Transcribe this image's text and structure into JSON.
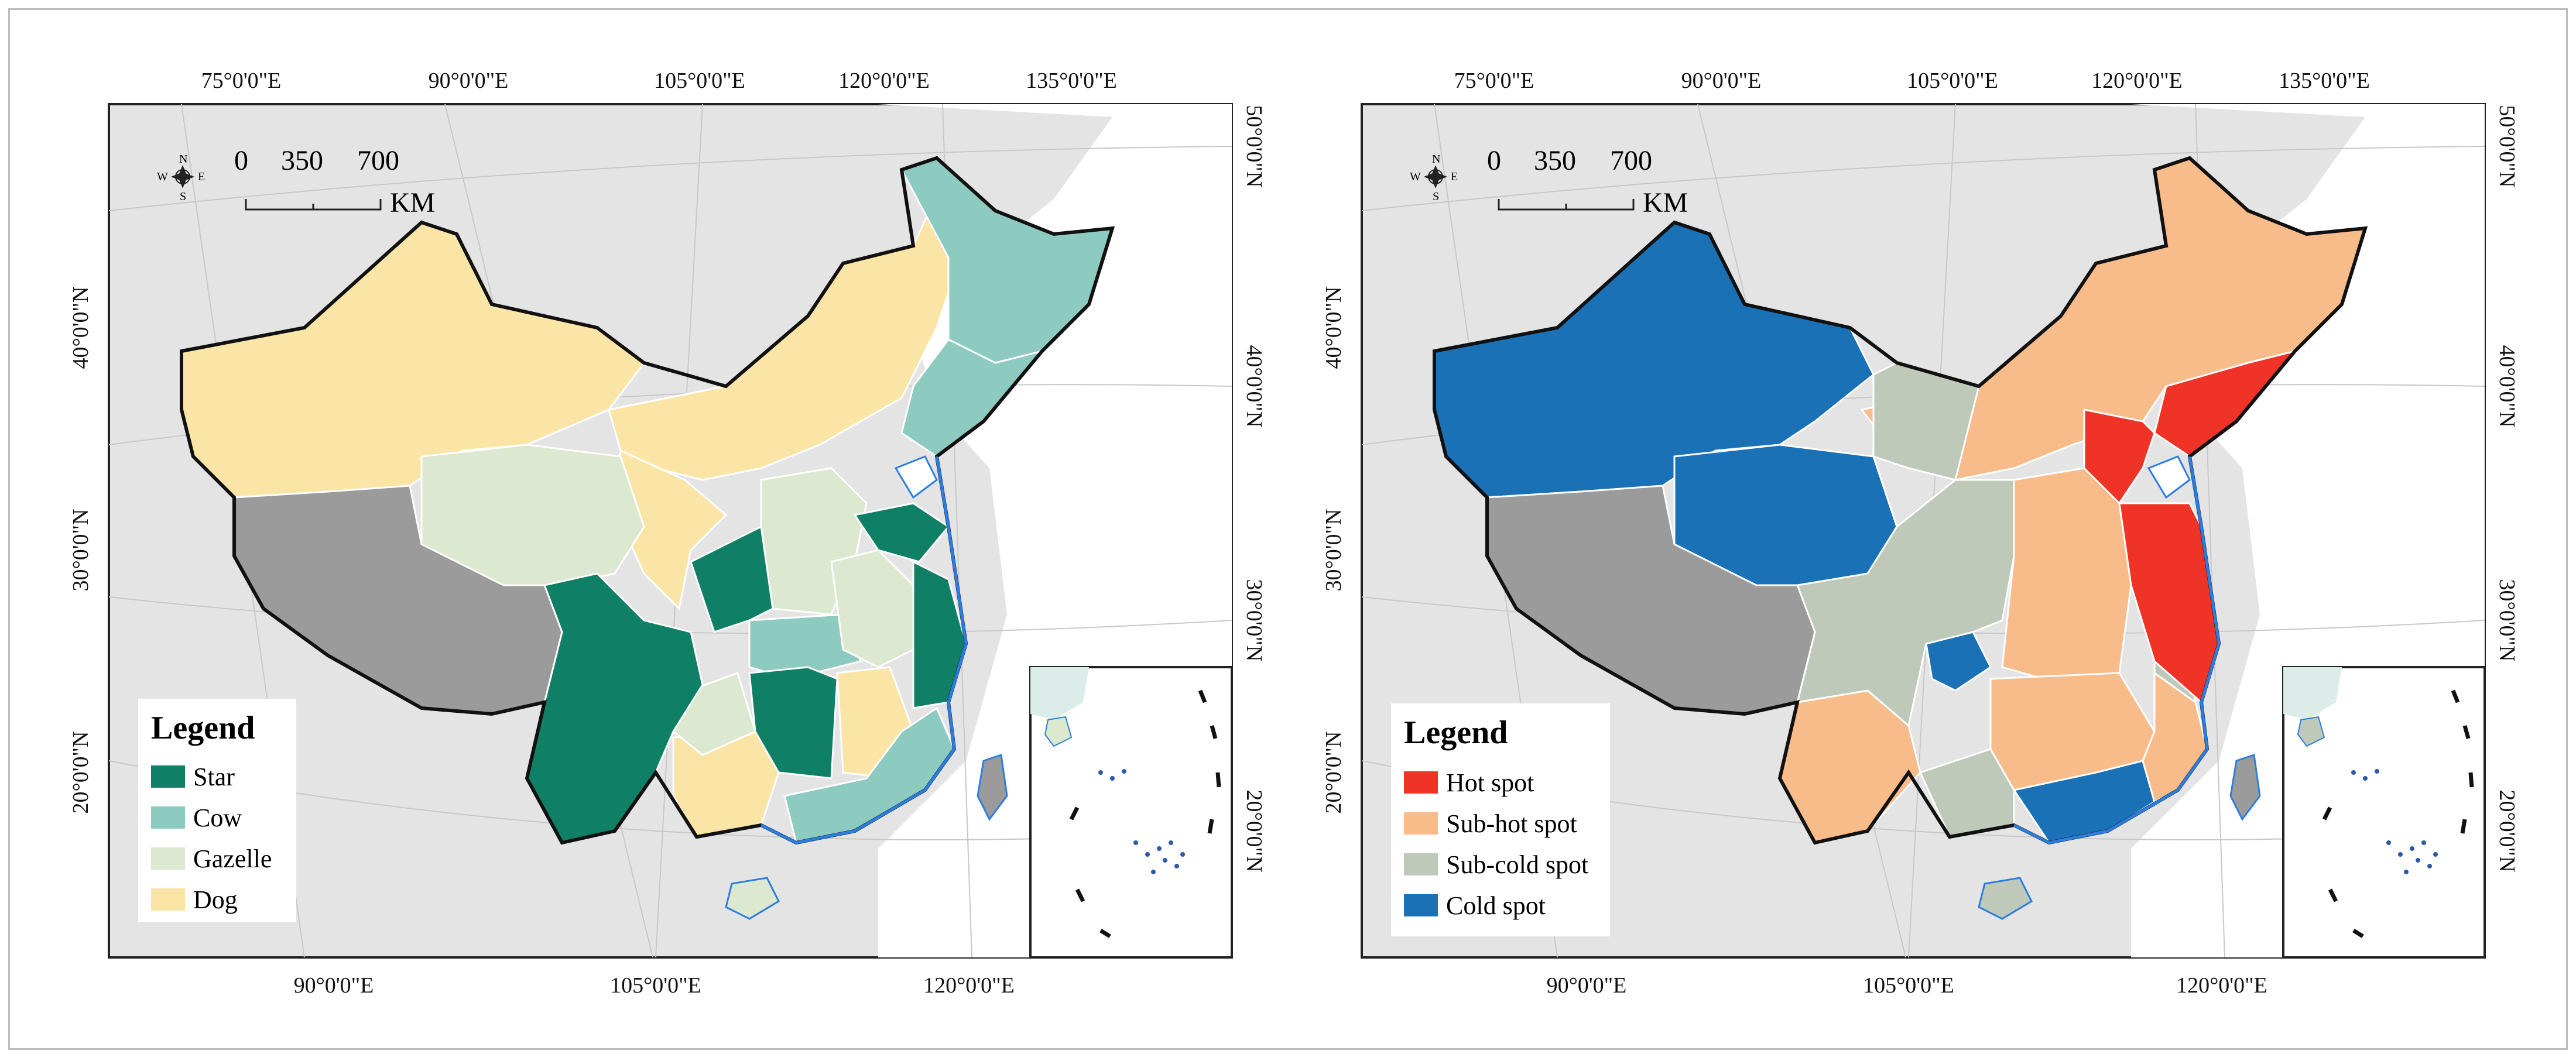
{
  "maps": [
    {
      "id": "left",
      "lon_labels_top": [
        "75°0'0\"E",
        "90°0'0\"E",
        "105°0'0\"E",
        "120°0'0\"E",
        "135°0'0\"E"
      ],
      "lon_labels_bottom": [
        "90°0'0\"E",
        "105°0'0\"E",
        "120°0'0\"E"
      ],
      "lat_labels_left": [
        "40°0'0\"N",
        "30°0'0\"N",
        "20°0'0\"N"
      ],
      "lat_labels_right": [
        "50°0'0\"N",
        "40°0'0\"N",
        "30°0'0\"N",
        "20°0'0\"N"
      ],
      "scale": {
        "ticks": [
          "0",
          "350",
          "700"
        ],
        "unit": "KM"
      },
      "compass": {
        "n": "N",
        "s": "S",
        "e": "E",
        "w": "W"
      },
      "legend": {
        "title": "Legend",
        "items": [
          {
            "label": "Star",
            "color": "#0f7f66"
          },
          {
            "label": "Cow",
            "color": "#8dcac0"
          },
          {
            "label": "Gazelle",
            "color": "#dce8cf"
          },
          {
            "label": "Dog",
            "color": "#fbe5a6"
          }
        ]
      },
      "regions": {
        "tibet": "#9b9b9b",
        "taiwan": "#9b9b9b",
        "hainan": "#dce8cf"
      }
    },
    {
      "id": "right",
      "lon_labels_top": [
        "75°0'0\"E",
        "90°0'0\"E",
        "105°0'0\"E",
        "120°0'0\"E",
        "135°0'0\"E"
      ],
      "lon_labels_bottom": [
        "90°0'0\"E",
        "105°0'0\"E",
        "120°0'0\"E"
      ],
      "lat_labels_left": [
        "40°0'0\"N",
        "30°0'0\"N",
        "20°0'0\"N"
      ],
      "lat_labels_right": [
        "50°0'0\"N",
        "40°0'0\"N",
        "30°0'0\"N",
        "20°0'0\"N"
      ],
      "scale": {
        "ticks": [
          "0",
          "350",
          "700"
        ],
        "unit": "KM"
      },
      "compass": {
        "n": "N",
        "s": "S",
        "e": "E",
        "w": "W"
      },
      "legend": {
        "title": "Legend",
        "items": [
          {
            "label": "Hot spot",
            "color": "#ef3326"
          },
          {
            "label": "Sub-hot spot",
            "color": "#f8bb8a"
          },
          {
            "label": "Sub-cold spot",
            "color": "#bfc9b9"
          },
          {
            "label": "Cold spot",
            "color": "#1a71b5"
          }
        ]
      },
      "regions": {
        "tibet": "#9b9b9b",
        "taiwan": "#9b9b9b",
        "hainan": "#bfc9b9"
      }
    }
  ]
}
